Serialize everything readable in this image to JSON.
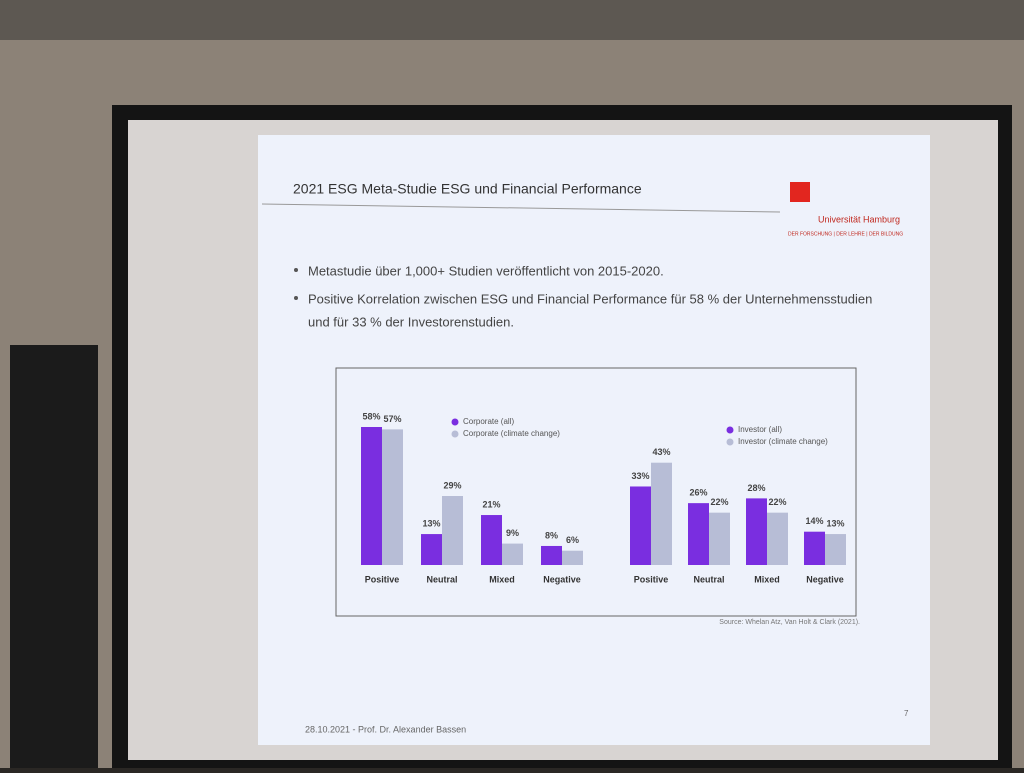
{
  "slide": {
    "title": "2021 ESG Meta-Studie ESG und Financial Performance",
    "logo_name": "Universität Hamburg",
    "logo_tagline": "DER FORSCHUNG | DER LEHRE | DER BILDUNG",
    "bullets": [
      "Metastudie über 1,000+ Studien veröffentlicht von 2015-2020.",
      "Positive Korrelation zwischen ESG und Financial Performance für 58 % der Unternehmensstudien",
      "und für 33 % der Investorenstudien."
    ],
    "source": "Source: Whelan Atz, Van Holt & Clark (2021).",
    "footer": "28.10.2021 - Prof. Dr. Alexander Bassen",
    "page_number": "7"
  },
  "chart_data": [
    {
      "type": "bar",
      "categories": [
        "Positive",
        "Neutral",
        "Mixed",
        "Negative"
      ],
      "series": [
        {
          "name": "Corporate (all)",
          "color": "#7a2ee0",
          "values": [
            58,
            13,
            21,
            8
          ],
          "value_labels": [
            "58%",
            "13%",
            "21%",
            "8%"
          ]
        },
        {
          "name": "Corporate (climate change)",
          "color": "#b7bdd6",
          "values": [
            57,
            29,
            9,
            6
          ],
          "value_labels": [
            "57%",
            "29%",
            "9%",
            "6%"
          ]
        }
      ]
    },
    {
      "type": "bar",
      "categories": [
        "Positive",
        "Neutral",
        "Mixed",
        "Negative"
      ],
      "series": [
        {
          "name": "Investor (all)",
          "color": "#7a2ee0",
          "values": [
            33,
            26,
            28,
            14
          ],
          "value_labels": [
            "33%",
            "26%",
            "28%",
            "14%"
          ]
        },
        {
          "name": "Investor (climate change)",
          "color": "#b7bdd6",
          "values": [
            43,
            22,
            22,
            13
          ],
          "value_labels": [
            "43%",
            "22%",
            "22%",
            "13%"
          ]
        }
      ]
    }
  ]
}
